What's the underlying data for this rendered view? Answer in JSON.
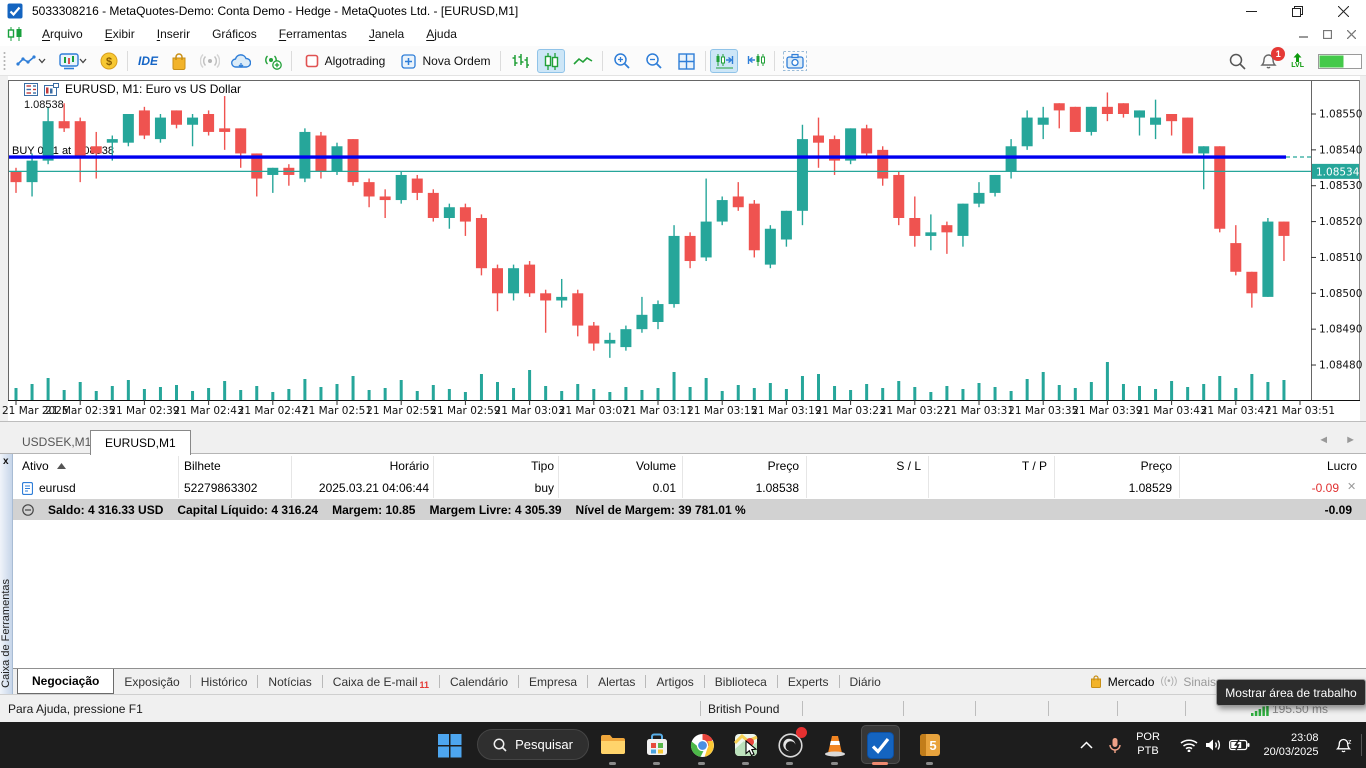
{
  "window": {
    "title": "5033308216 - MetaQuotes-Demo: Conta Demo - Hedge - MetaQuotes Ltd. - [EURUSD,M1]"
  },
  "menu": {
    "items": [
      {
        "label": "Arquivo",
        "u": 0
      },
      {
        "label": "Exibir",
        "u": 0
      },
      {
        "label": "Inserir",
        "u": 0
      },
      {
        "label": "Gráficos",
        "u": 5
      },
      {
        "label": "Ferramentas",
        "u": 0
      },
      {
        "label": "Janela",
        "u": 0
      },
      {
        "label": "Ajuda",
        "u": 0
      }
    ]
  },
  "toolbar": {
    "ide_label": "IDE",
    "algotrading_label": "Algotrading",
    "new_order_label": "Nova Ordem",
    "notification_count": "1",
    "lvl_label": "LVL"
  },
  "chart": {
    "title": "EURUSD, M1:  Euro vs US Dollar",
    "price_label": "1.08538",
    "buy_label": "BUY 0.01 at 1.08538",
    "bid_badge": "1.08534"
  },
  "chart_data": {
    "type": "candlestick",
    "symbol": "EURUSD",
    "timeframe": "M1",
    "ylim": [
      1.08475,
      1.0856
    ],
    "up_color": "#26a69a",
    "down_color": "#ef5350",
    "buy_line_color": "#0000f0",
    "price_ticks": [
      "1.08550",
      "1.08540",
      "1.08530",
      "1.08520",
      "1.08510",
      "1.08500",
      "1.08490",
      "1.08480"
    ],
    "time_labels": [
      "21 Mar 2025",
      "21 Mar 02:35",
      "21 Mar 02:39",
      "21 Mar 02:43",
      "21 Mar 02:47",
      "21 Mar 02:51",
      "21 Mar 02:55",
      "21 Mar 02:59",
      "21 Mar 03:03",
      "21 Mar 03:07",
      "21 Mar 03:11",
      "21 Mar 03:15",
      "21 Mar 03:19",
      "21 Mar 03:23",
      "21 Mar 03:27",
      "21 Mar 03:31",
      "21 Mar 03:35",
      "21 Mar 03:39",
      "21 Mar 03:43",
      "21 Mar 03:47",
      "21 Mar 03:51"
    ],
    "buy_line": 1.08538,
    "bid_line": 1.08534,
    "ask_line": 1.08538,
    "candles": [
      [
        1.08534,
        1.08535,
        1.08528,
        1.08531
      ],
      [
        1.08531,
        1.08539,
        1.08527,
        1.08537
      ],
      [
        1.08537,
        1.08552,
        1.08536,
        1.08548
      ],
      [
        1.08548,
        1.08553,
        1.08545,
        1.08546
      ],
      [
        1.08548,
        1.08549,
        1.08531,
        1.08538
      ],
      [
        1.08541,
        1.08545,
        1.08532,
        1.08539
      ],
      [
        1.08542,
        1.08544,
        1.08537,
        1.08543
      ],
      [
        1.08542,
        1.0855,
        1.08541,
        1.0855
      ],
      [
        1.08551,
        1.08552,
        1.08543,
        1.08544
      ],
      [
        1.08543,
        1.0855,
        1.08542,
        1.08549
      ],
      [
        1.08551,
        1.08551,
        1.08546,
        1.08547
      ],
      [
        1.08547,
        1.0855,
        1.08541,
        1.08549
      ],
      [
        1.0855,
        1.08551,
        1.08544,
        1.08545
      ],
      [
        1.08546,
        1.08555,
        1.0854,
        1.08545
      ],
      [
        1.08546,
        1.08546,
        1.08535,
        1.08539
      ],
      [
        1.08539,
        1.08539,
        1.08527,
        1.08532
      ],
      [
        1.08533,
        1.08535,
        1.08528,
        1.08535
      ],
      [
        1.08535,
        1.08536,
        1.0853,
        1.08533
      ],
      [
        1.08532,
        1.08546,
        1.08531,
        1.08545
      ],
      [
        1.08544,
        1.08545,
        1.08532,
        1.08534
      ],
      [
        1.08534,
        1.08542,
        1.08533,
        1.08541
      ],
      [
        1.08543,
        1.08543,
        1.0853,
        1.08531
      ],
      [
        1.08531,
        1.08532,
        1.08524,
        1.08527
      ],
      [
        1.08527,
        1.08529,
        1.08521,
        1.08526
      ],
      [
        1.08526,
        1.08534,
        1.08525,
        1.08533
      ],
      [
        1.08532,
        1.08533,
        1.08526,
        1.08528
      ],
      [
        1.08528,
        1.08529,
        1.0852,
        1.08521
      ],
      [
        1.08521,
        1.08525,
        1.08518,
        1.08524
      ],
      [
        1.08524,
        1.08525,
        1.08516,
        1.0852
      ],
      [
        1.08521,
        1.08522,
        1.08505,
        1.08507
      ],
      [
        1.08507,
        1.08508,
        1.08495,
        1.085
      ],
      [
        1.085,
        1.08508,
        1.08498,
        1.08507
      ],
      [
        1.08508,
        1.08509,
        1.08499,
        1.085
      ],
      [
        1.085,
        1.08501,
        1.08489,
        1.08498
      ],
      [
        1.08498,
        1.08504,
        1.08496,
        1.08499
      ],
      [
        1.085,
        1.08501,
        1.08488,
        1.08491
      ],
      [
        1.08491,
        1.08492,
        1.08484,
        1.08486
      ],
      [
        1.08486,
        1.08489,
        1.08482,
        1.08487
      ],
      [
        1.08485,
        1.08491,
        1.08484,
        1.0849
      ],
      [
        1.0849,
        1.08499,
        1.08489,
        1.08494
      ],
      [
        1.08492,
        1.08498,
        1.0849,
        1.08497
      ],
      [
        1.08497,
        1.08519,
        1.08496,
        1.08516
      ],
      [
        1.08516,
        1.08517,
        1.08507,
        1.08509
      ],
      [
        1.0851,
        1.08532,
        1.08509,
        1.0852
      ],
      [
        1.0852,
        1.08527,
        1.08519,
        1.08526
      ],
      [
        1.08527,
        1.08531,
        1.08523,
        1.08524
      ],
      [
        1.08525,
        1.08526,
        1.0851,
        1.08512
      ],
      [
        1.08508,
        1.08519,
        1.08507,
        1.08518
      ],
      [
        1.08515,
        1.08523,
        1.08513,
        1.08523
      ],
      [
        1.08523,
        1.08547,
        1.08519,
        1.08543
      ],
      [
        1.08544,
        1.08549,
        1.08535,
        1.08542
      ],
      [
        1.08543,
        1.08544,
        1.08533,
        1.08537
      ],
      [
        1.08537,
        1.08546,
        1.08536,
        1.08546
      ],
      [
        1.08546,
        1.08547,
        1.08538,
        1.08539
      ],
      [
        1.0854,
        1.08541,
        1.0853,
        1.08532
      ],
      [
        1.08533,
        1.08534,
        1.08519,
        1.08521
      ],
      [
        1.08521,
        1.08527,
        1.08513,
        1.08516
      ],
      [
        1.08516,
        1.08522,
        1.08512,
        1.08517
      ],
      [
        1.08519,
        1.0852,
        1.08511,
        1.08517
      ],
      [
        1.08516,
        1.08525,
        1.08513,
        1.08525
      ],
      [
        1.08525,
        1.08531,
        1.08524,
        1.08528
      ],
      [
        1.08528,
        1.08533,
        1.08527,
        1.08533
      ],
      [
        1.08534,
        1.08543,
        1.08532,
        1.08541
      ],
      [
        1.08541,
        1.08551,
        1.0854,
        1.08549
      ],
      [
        1.08547,
        1.08552,
        1.08543,
        1.08549
      ],
      [
        1.08553,
        1.08553,
        1.08546,
        1.08551
      ],
      [
        1.08552,
        1.08552,
        1.08545,
        1.08545
      ],
      [
        1.08545,
        1.08552,
        1.08544,
        1.08552
      ],
      [
        1.08552,
        1.08556,
        1.08548,
        1.0855
      ],
      [
        1.08553,
        1.08553,
        1.08549,
        1.0855
      ],
      [
        1.08549,
        1.08551,
        1.08544,
        1.08551
      ],
      [
        1.08547,
        1.08554,
        1.08543,
        1.08549
      ],
      [
        1.0855,
        1.0855,
        1.08544,
        1.08548
      ],
      [
        1.08549,
        1.08549,
        1.08539,
        1.08539
      ],
      [
        1.08539,
        1.08541,
        1.08529,
        1.08541
      ],
      [
        1.08541,
        1.08541,
        1.08517,
        1.08518
      ],
      [
        1.08514,
        1.08519,
        1.08505,
        1.08506
      ],
      [
        1.08506,
        1.08506,
        1.08496,
        1.085
      ],
      [
        1.08499,
        1.08521,
        1.08499,
        1.0852
      ],
      [
        1.0852,
        1.0852,
        1.08509,
        1.08516
      ]
    ],
    "volumes": [
      12,
      16,
      22,
      10,
      18,
      9,
      14,
      20,
      11,
      13,
      15,
      9,
      12,
      19,
      10,
      14,
      8,
      11,
      21,
      13,
      16,
      24,
      10,
      12,
      20,
      9,
      15,
      11,
      8,
      26,
      18,
      12,
      30,
      14,
      9,
      16,
      11,
      8,
      13,
      10,
      12,
      28,
      13,
      22,
      9,
      15,
      12,
      17,
      11,
      24,
      26,
      14,
      10,
      16,
      12,
      19,
      13,
      8,
      14,
      11,
      17,
      13,
      9,
      21,
      28,
      15,
      12,
      18,
      38,
      16,
      14,
      11,
      19,
      13,
      16,
      24,
      12,
      26,
      18,
      20
    ]
  },
  "chart_tabs": {
    "tabs": [
      {
        "label": "USDSEK,M1"
      },
      {
        "label": "EURUSD,M1"
      }
    ]
  },
  "toolbox": {
    "panel_title": "Caixa de Ferramentas",
    "columns": [
      "Ativo",
      "Bilhete",
      "Horário",
      "Tipo",
      "Volume",
      "Preço",
      "S / L",
      "T / P",
      "Preço",
      "Lucro"
    ],
    "position": {
      "ativo": "eurusd",
      "bilhete": "52279863302",
      "horario": "2025.03.21 04:06:44",
      "tipo": "buy",
      "volume": "0.01",
      "preco": "1.08538",
      "sl": "",
      "tp": "",
      "preco_atual": "1.08529",
      "lucro": "-0.09"
    },
    "summary": {
      "saldo": "Saldo: 4 316.33 USD",
      "capital": "Capital Líquido: 4 316.24",
      "margem": "Margem: 10.85",
      "margem_livre": "Margem Livre: 4 305.39",
      "nivel": "Nível de Margem: 39 781.01 %",
      "lucro": "-0.09"
    },
    "tabs": [
      "Negociação",
      "Exposição",
      "Histórico",
      "Notícias",
      "Caixa de E-mail",
      "Calendário",
      "Empresa",
      "Alertas",
      "Artigos",
      "Biblioteca",
      "Experts",
      "Diário"
    ],
    "email_badge": "11",
    "market_label": "Mercado",
    "signals_label": "Sinais"
  },
  "status_bar": {
    "help": "Para Ajuda, pressione F1",
    "symbol_info": "British Pound",
    "ping": "195.50 ms"
  },
  "tooltip": "Mostrar área de trabalho",
  "taskbar": {
    "search_placeholder": "Pesquisar",
    "language_line1": "POR",
    "language_line2": "PTB",
    "time": "23:08",
    "date": "20/03/2025"
  }
}
